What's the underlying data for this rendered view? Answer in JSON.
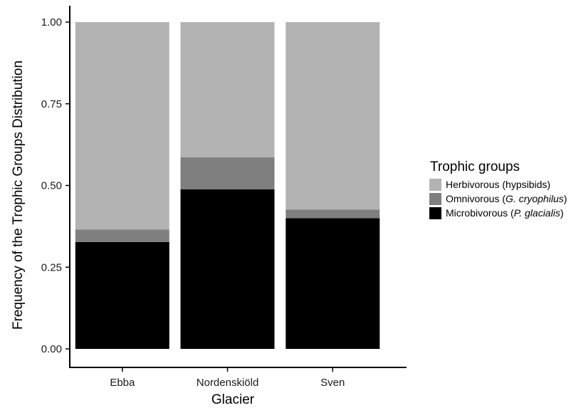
{
  "chart_data": {
    "type": "bar",
    "stacked": true,
    "title": "",
    "xlabel": "Glacier",
    "ylabel": "Frequency of the Trophic Groups Distribution",
    "ylim": [
      0,
      1
    ],
    "yticks": [
      0,
      0.25,
      0.5,
      0.75,
      1
    ],
    "ytick_labels": [
      "0.00",
      "0.25",
      "0.50",
      "0.75",
      "1.00"
    ],
    "categories": [
      "Ebba",
      "Nordenskiöld",
      "Sven"
    ],
    "series": [
      {
        "name": "Microbivorous (P. glacialis)",
        "color": "#000000",
        "values": [
          0.327,
          0.488,
          0.4
        ]
      },
      {
        "name": "Omnivorous (G. cryophilus)",
        "color": "#7f7f7f",
        "values": [
          0.038,
          0.098,
          0.026
        ]
      },
      {
        "name": "Herbivorous (hypsibids)",
        "color": "#b3b3b3",
        "values": [
          0.635,
          0.414,
          0.574
        ]
      }
    ],
    "grid": false,
    "legend_position": "right",
    "legend": {
      "title": "Trophic groups",
      "entries": [
        {
          "plain": "Herbivorous (hypsibids)",
          "prefix": "Herbivorous (",
          "italic": "",
          "suffix": "hypsibids)",
          "color": "#b3b3b3"
        },
        {
          "plain": "Omnivorous (G. cryophilus)",
          "prefix": "Omnivorous (",
          "italic": "G. cryophilus",
          "suffix": ")",
          "color": "#7f7f7f"
        },
        {
          "plain": "Microbivorous (P. glacialis)",
          "prefix": "Microbivorous (",
          "italic": "P. glacialis",
          "suffix": ")",
          "color": "#000000"
        }
      ]
    }
  }
}
